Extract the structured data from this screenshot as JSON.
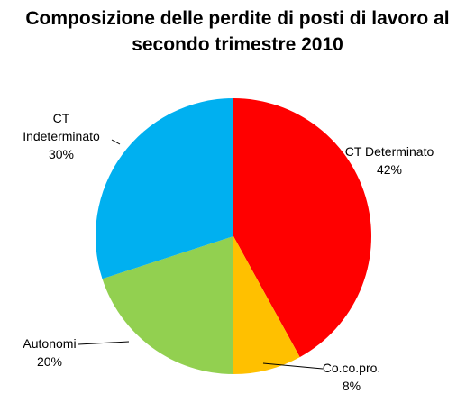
{
  "chart_data": {
    "type": "pie",
    "title": "Composizione delle perdite di posti di lavoro al secondo trimestre 2010",
    "title_lines": [
      "Composizione delle perdite di posti di lavoro al",
      "secondo trimestre 2010"
    ],
    "categories": [
      "CT Determinato",
      "Co.co.pro.",
      "Autonomi",
      "CT Indeterminato"
    ],
    "values": [
      42,
      8,
      20,
      30
    ],
    "unit": "%",
    "colors": [
      "#ff0000",
      "#ffc000",
      "#92d050",
      "#00b0f0"
    ],
    "labels": [
      {
        "lines": [
          "CT Determinato",
          "42%"
        ]
      },
      {
        "lines": [
          "Co.co.pro.",
          "8%"
        ]
      },
      {
        "lines": [
          "Autonomi",
          "20%"
        ]
      },
      {
        "lines": [
          "CT",
          "Indeterminato",
          "30%"
        ]
      }
    ]
  }
}
